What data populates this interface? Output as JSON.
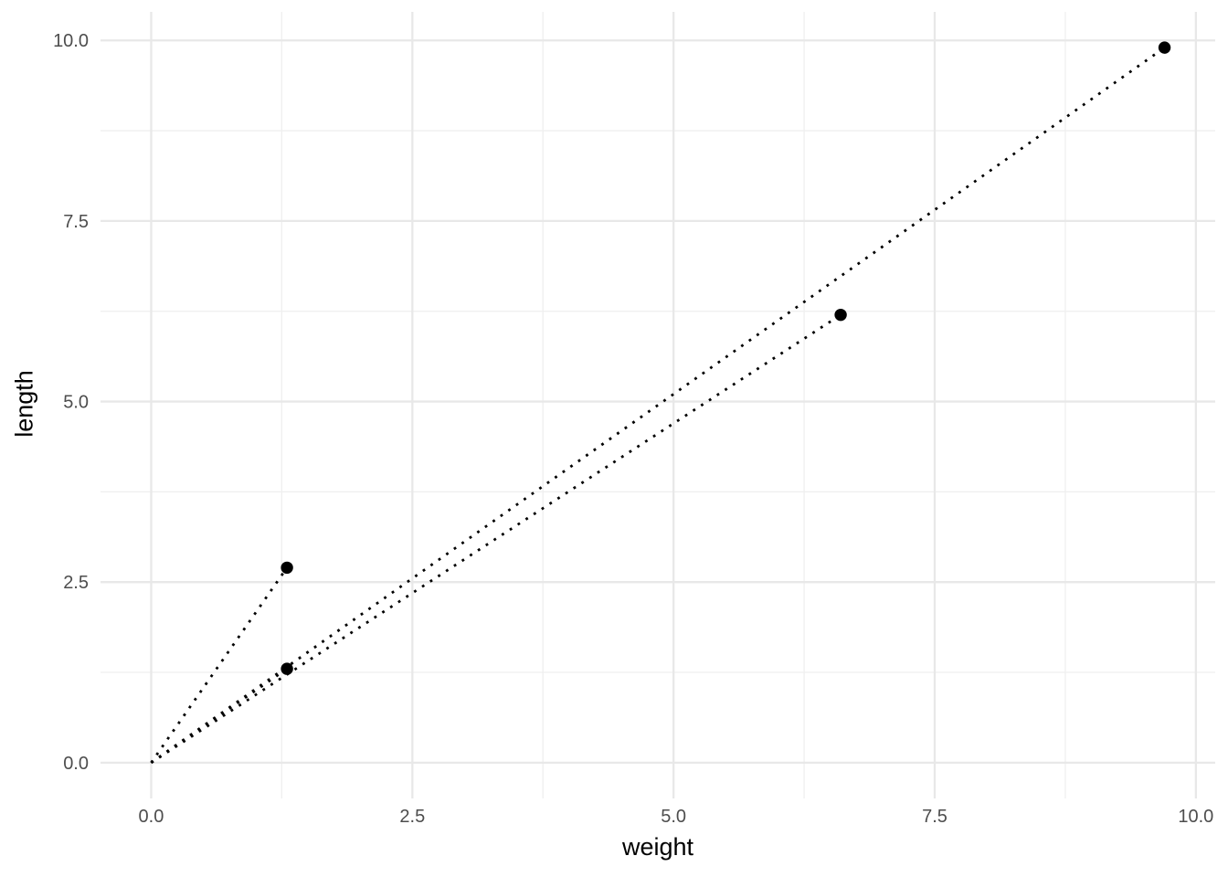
{
  "chart_data": {
    "type": "scatter",
    "title": "",
    "xlabel": "weight",
    "ylabel": "length",
    "points": [
      {
        "x": 1.3,
        "y": 2.7
      },
      {
        "x": 1.3,
        "y": 1.3
      },
      {
        "x": 6.6,
        "y": 6.2
      },
      {
        "x": 9.7,
        "y": 9.9
      }
    ],
    "segments": [
      {
        "from": [
          0,
          0
        ],
        "to": [
          1.3,
          2.7
        ]
      },
      {
        "from": [
          0,
          0
        ],
        "to": [
          1.3,
          1.3
        ]
      },
      {
        "from": [
          0,
          0
        ],
        "to": [
          6.6,
          6.2
        ]
      },
      {
        "from": [
          0,
          0
        ],
        "to": [
          9.7,
          9.9
        ]
      }
    ],
    "segment_style": "dotted",
    "xlim": [
      -0.485,
      10.185
    ],
    "ylim": [
      -0.495,
      10.395
    ],
    "x_ticks": {
      "values": [
        0,
        2.5,
        5,
        7.5,
        10
      ],
      "labels": [
        "0.0",
        "2.5",
        "5.0",
        "7.5",
        "10.0"
      ]
    },
    "y_ticks": {
      "values": [
        0,
        2.5,
        5,
        7.5,
        10
      ],
      "labels": [
        "0.0",
        "2.5",
        "5.0",
        "7.5",
        "10.0"
      ]
    },
    "x_minor_gridlines": [
      1.25,
      3.75,
      6.25,
      8.75
    ],
    "y_minor_gridlines": [
      1.25,
      3.75,
      6.25,
      8.75
    ],
    "grid": "major and minor, no panel border, no tick marks",
    "legend": "none",
    "colors": {
      "background": "#FFFFFF",
      "grid_major": "#E8E8E8",
      "grid_minor": "#EFEFEF",
      "point": "#000000",
      "segment": "#000000",
      "tick_label": "#4D4D4D",
      "axis_title": "#000000"
    }
  }
}
